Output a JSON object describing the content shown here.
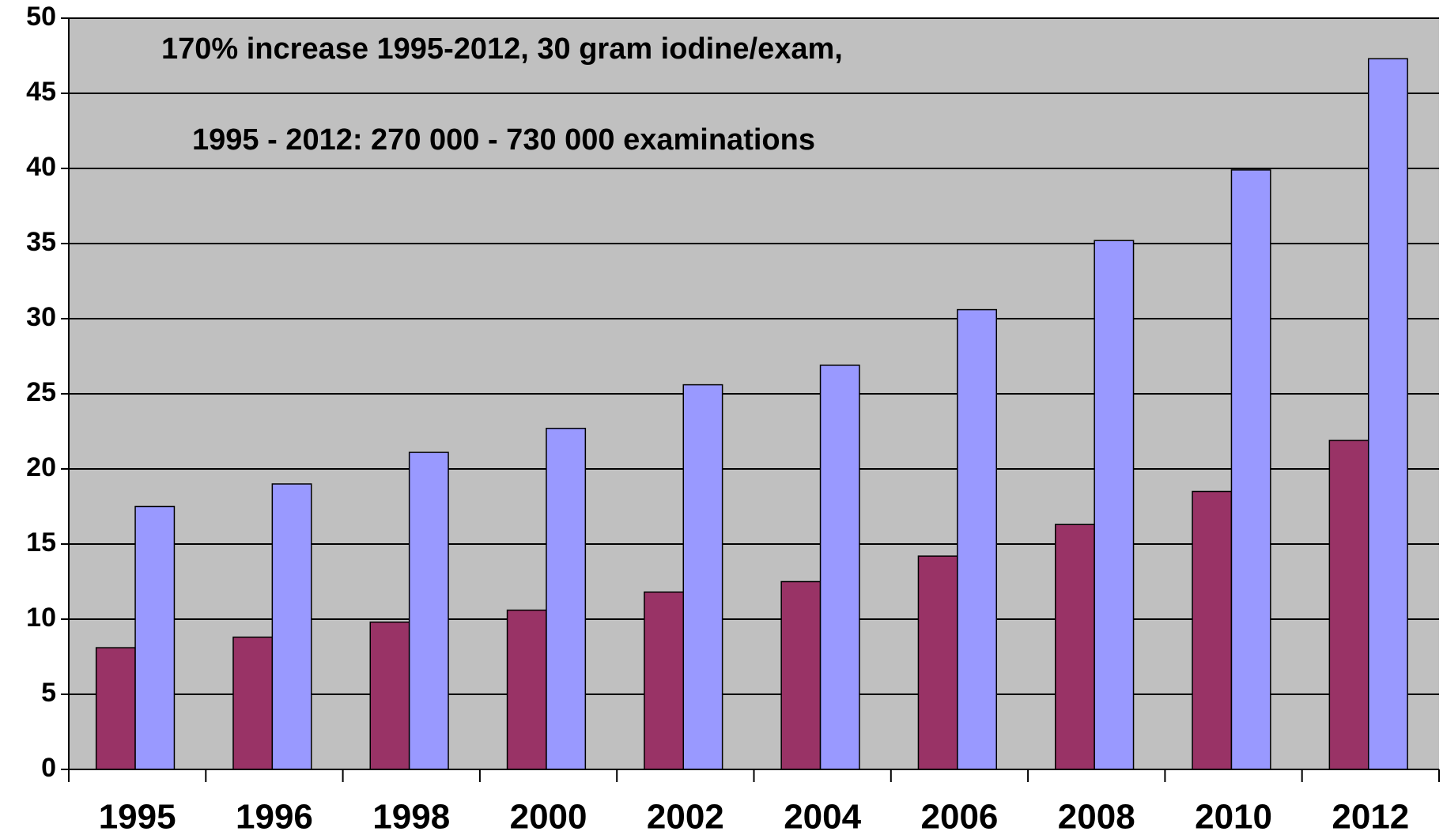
{
  "chart_data": {
    "type": "bar",
    "annotations": [
      "170% increase 1995-2012, 30 gram iodine/exam,",
      "1995 - 2012: 270 000 - 730 000 examinations"
    ],
    "categories": [
      "1995",
      "1996",
      "1998",
      "2000",
      "2002",
      "2004",
      "2006",
      "2008",
      "2010",
      "2012"
    ],
    "series": [
      {
        "color": "#993366",
        "values": [
          8.1,
          8.8,
          9.8,
          10.6,
          11.8,
          12.5,
          14.2,
          16.3,
          18.5,
          21.9
        ]
      },
      {
        "color": "#9999ff",
        "values": [
          17.5,
          19.0,
          21.1,
          22.7,
          25.6,
          26.9,
          30.6,
          35.2,
          39.9,
          47.3
        ]
      }
    ],
    "ylim": [
      0,
      50
    ],
    "yticks": [
      0,
      5,
      10,
      15,
      20,
      25,
      30,
      35,
      40,
      45,
      50
    ],
    "grid": true,
    "plot_background": "#c0c0c0"
  }
}
